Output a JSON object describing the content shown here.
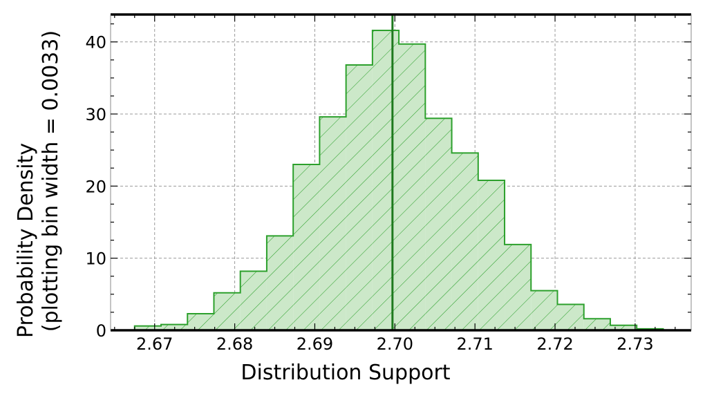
{
  "chart_data": {
    "type": "histogram",
    "xlabel": "Distribution Support",
    "ylabel_line1": "Probability Density",
    "ylabel_line2": "(plotting bin width = 0.0033)",
    "xlim": [
      2.6645,
      2.737
    ],
    "ylim": [
      0,
      43.8
    ],
    "x_ticks": [
      2.67,
      2.68,
      2.69,
      2.7,
      2.71,
      2.72,
      2.73
    ],
    "x_tick_labels": [
      "2.67",
      "2.68",
      "2.69",
      "2.70",
      "2.71",
      "2.72",
      "2.73"
    ],
    "y_ticks": [
      0,
      10,
      20,
      30,
      40
    ],
    "y_tick_labels": [
      "0",
      "10",
      "20",
      "30",
      "40"
    ],
    "grid": true,
    "vertical_line_x": 2.6997,
    "bin_edges": [
      2.6675,
      2.6708,
      2.6741,
      2.6774,
      2.6807,
      2.684,
      2.6873,
      2.6906,
      2.6939,
      2.6972,
      2.7005,
      2.7038,
      2.7071,
      2.7104,
      2.7137,
      2.717,
      2.7203,
      2.7236,
      2.7269,
      2.7302,
      2.7335
    ],
    "values": [
      0.6,
      0.8,
      2.3,
      5.2,
      8.2,
      13.1,
      23.0,
      29.6,
      36.8,
      41.6,
      39.7,
      29.4,
      24.6,
      20.8,
      11.9,
      5.5,
      3.6,
      1.6,
      0.7,
      0.2
    ],
    "colors": {
      "fill": "#cce8c9",
      "edge": "#2ca02c",
      "hatch": "#2ca02c",
      "vline": "#1e7a1e",
      "grid": "#999999"
    }
  }
}
